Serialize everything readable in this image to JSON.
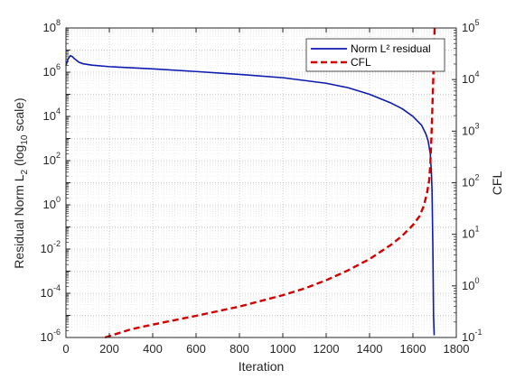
{
  "chart_data": {
    "type": "line",
    "xlabel": "Iteration",
    "ylabel_left": {
      "main": "Residual Norm L",
      "sub": "2",
      "paren_pre": " (log",
      "paren_sub": "10",
      "paren_post": " scale)"
    },
    "ylabel_right": "CFL",
    "xlim": [
      0,
      1800
    ],
    "xticks": [
      "0",
      "200",
      "400",
      "600",
      "800",
      "1000",
      "1200",
      "1400",
      "1600",
      "1800"
    ],
    "xtick_values": [
      0,
      200,
      400,
      600,
      800,
      1000,
      1200,
      1400,
      1600,
      1800
    ],
    "y_left": {
      "scale": "log",
      "range_exp": [
        -6,
        8
      ],
      "tick_exps": [
        -6,
        -4,
        -2,
        0,
        2,
        4,
        6,
        8
      ]
    },
    "y_right": {
      "scale": "log",
      "range_exp": [
        -1,
        5
      ],
      "tick_exps": [
        -1,
        0,
        1,
        2,
        3,
        4,
        5
      ]
    },
    "grid": true,
    "minor_grid": true,
    "legend_position": "top-right",
    "series": [
      {
        "name": "Norm L² residual",
        "axis": "left",
        "color": "#0d1ab0",
        "style": "solid",
        "x": [
          0,
          10,
          20,
          30,
          40,
          60,
          80,
          120,
          200,
          400,
          600,
          800,
          1000,
          1200,
          1300,
          1400,
          1500,
          1550,
          1600,
          1640,
          1660,
          1670,
          1680,
          1685,
          1688,
          1692,
          1695,
          1698
        ],
        "log_y": [
          6.3,
          6.6,
          6.75,
          6.7,
          6.6,
          6.45,
          6.38,
          6.32,
          6.25,
          6.15,
          6.03,
          5.9,
          5.75,
          5.5,
          5.3,
          5.0,
          4.6,
          4.35,
          4.0,
          3.6,
          3.2,
          2.9,
          2.3,
          1.5,
          0.7,
          -2.0,
          -5.0,
          -5.9
        ]
      },
      {
        "name": "CFL",
        "axis": "right",
        "color": "#d40000",
        "style": "dashed",
        "x": [
          180,
          300,
          400,
          600,
          800,
          1000,
          1100,
          1200,
          1300,
          1400,
          1500,
          1550,
          1600,
          1630,
          1650,
          1665,
          1675,
          1680,
          1685,
          1690,
          1695,
          1700
        ],
        "log_y": [
          -1.0,
          -0.84,
          -0.75,
          -0.58,
          -0.4,
          -0.18,
          -0.05,
          0.11,
          0.3,
          0.52,
          0.8,
          0.97,
          1.18,
          1.35,
          1.55,
          1.8,
          2.05,
          2.35,
          2.85,
          3.5,
          4.2,
          5.0
        ]
      }
    ]
  }
}
